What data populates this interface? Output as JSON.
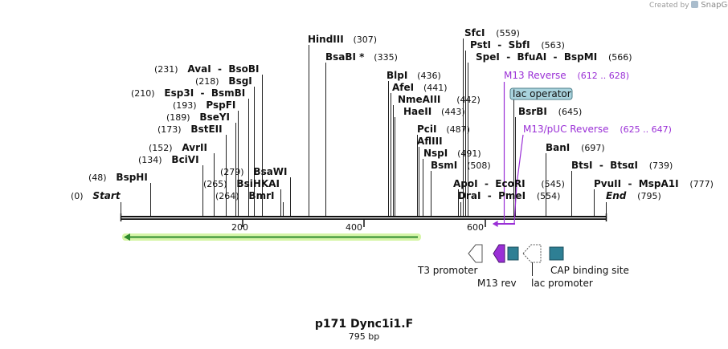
{
  "credit": "Created by",
  "brand": "SnapGene",
  "map_title": "p171 Dync1i1.F",
  "map_length": "795 bp",
  "ruler": [
    "200",
    "400",
    "600"
  ],
  "sites": [
    {
      "id": "start",
      "name": "Start",
      "pos": "(0)",
      "pos_left": true,
      "italic": true
    },
    {
      "id": "bsphi",
      "name": "BspHI",
      "pos": "(48)",
      "pos_left": true
    },
    {
      "id": "bcivi",
      "name": "BciVI",
      "pos": "(134)",
      "pos_left": true
    },
    {
      "id": "avrii",
      "name": "AvrII",
      "pos": "(152)",
      "pos_left": true
    },
    {
      "id": "bsteii",
      "name": "BstEII",
      "pos": "(173)",
      "pos_left": true
    },
    {
      "id": "bseyi",
      "name": "BseYI",
      "pos": "(189)",
      "pos_left": true
    },
    {
      "id": "pspfi",
      "name": "PspFI",
      "pos": "(193)",
      "pos_left": true
    },
    {
      "id": "esp3i",
      "name": "Esp3I  -  BsmBI",
      "pos": "(210)",
      "pos_left": true
    },
    {
      "id": "bsgi",
      "name": "BsgI",
      "pos": "(218)",
      "pos_left": true
    },
    {
      "id": "avai",
      "name": "AvaI  -  BsoBI",
      "pos": "(231)",
      "pos_left": true
    },
    {
      "id": "bmri",
      "name": "BmrI",
      "pos": "(264)",
      "pos_left": true
    },
    {
      "id": "bsihkai",
      "name": "BsiHKAI",
      "pos": "(265)",
      "pos_left": true
    },
    {
      "id": "bsawi",
      "name": "BsaWI",
      "pos": "(279)",
      "pos_left": true
    },
    {
      "id": "hindiii",
      "name": "HindIII",
      "pos": "(307)"
    },
    {
      "id": "bsabi",
      "name": "BsaBI *",
      "pos": "(335)"
    },
    {
      "id": "blpi",
      "name": "BlpI",
      "pos": "(436)"
    },
    {
      "id": "afei",
      "name": "AfeI",
      "pos": "(441)"
    },
    {
      "id": "nmeaiii",
      "name": "NmeAIII",
      "pos": "(442)"
    },
    {
      "id": "haeii",
      "name": "HaeII",
      "pos": "(443)"
    },
    {
      "id": "pcii",
      "name": "PciI",
      "pos": "(487)"
    },
    {
      "id": "afliii",
      "name": "AflIII",
      "pos": ""
    },
    {
      "id": "nspi",
      "name": "NspI",
      "pos": "(491)"
    },
    {
      "id": "bsmi",
      "name": "BsmI",
      "pos": "(508)"
    },
    {
      "id": "apoi",
      "name": "ApoI  -  EcoRI",
      "pos": "(545)"
    },
    {
      "id": "drai",
      "name": "DraI  -  PmeI",
      "pos": "(554)"
    },
    {
      "id": "sfci",
      "name": "SfcI",
      "pos": "(559)"
    },
    {
      "id": "psti",
      "name": "PstI  -  SbfI",
      "pos": "(563)"
    },
    {
      "id": "spei",
      "name": "SpeI  -  BfuAI  -  BspMI",
      "pos": "(566)"
    },
    {
      "id": "bsrbi",
      "name": "BsrBI",
      "pos": "(645)"
    },
    {
      "id": "bani",
      "name": "BanI",
      "pos": "(697)"
    },
    {
      "id": "btsi",
      "name": "BtsI  -  BtsαI",
      "pos": "(739)"
    },
    {
      "id": "pvuii",
      "name": "PvuII  -  MspA1I",
      "pos": "(777)"
    },
    {
      "id": "end",
      "name": "End",
      "pos": "(795)",
      "italic": true
    }
  ],
  "primers": [
    {
      "id": "m13rev",
      "name": "M13 Reverse",
      "range": "(612 .. 628)"
    },
    {
      "id": "m13puc",
      "name": "M13/pUC Reverse",
      "range": "(625 .. 647)"
    }
  ],
  "lac_operator": "lac operator",
  "features": {
    "t3": "T3 promoter",
    "m13rev": "M13 rev",
    "lacpromoter": "lac promoter",
    "cap": "CAP binding site"
  },
  "colors": {
    "backbone": "#111111",
    "primer": "#9a2fd6",
    "orf_arrow": "#2e8b2e",
    "orf_glow": "#d6f5a8",
    "teal_box": "#2e7f94",
    "lac_op_fill": "#a9d3dd",
    "lac_op_border": "#4f7f8a"
  }
}
